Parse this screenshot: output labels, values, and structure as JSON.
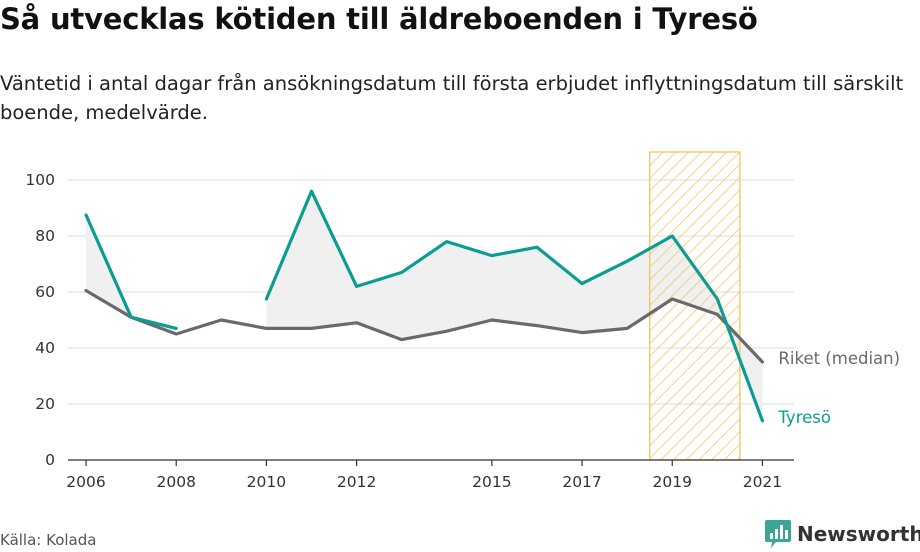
{
  "title": "Så utvecklas kötiden till äldreboenden i Tyresö",
  "subtitle": "Väntetid i antal dagar från ansökningsdatum till första erbjudet inflyttningsdatum till särskilt boende, medelvärde.",
  "source": "Källa: Kolada",
  "brand": "Newsworthy",
  "colors": {
    "tyreso": "#0a9e92",
    "riket": "#6b696e",
    "highlight_stroke": "#f2c04e",
    "area_fill": "#f0f0f0",
    "grid": "#dddddd"
  },
  "chart_data": {
    "type": "line",
    "title": "Så utvecklas kötiden till äldreboenden i Tyresö",
    "xlabel": "",
    "ylabel": "",
    "xlim": [
      2005.6,
      2021.7
    ],
    "ylim": [
      0,
      110
    ],
    "grid": true,
    "x_ticks": [
      2006,
      2008,
      2010,
      2012,
      2015,
      2017,
      2019,
      2021
    ],
    "y_ticks": [
      0,
      20,
      40,
      60,
      80,
      100
    ],
    "highlight_range": [
      2018.5,
      2020.5
    ],
    "series": [
      {
        "name": "Riket (median)",
        "color": "#6b696e",
        "x": [
          2006,
          2007,
          2008,
          2009,
          2010,
          2011,
          2012,
          2013,
          2014,
          2015,
          2016,
          2017,
          2018,
          2019,
          2020,
          2021
        ],
        "y": [
          60.5,
          51,
          45,
          50,
          47,
          47,
          49,
          43,
          46,
          50,
          48,
          45.5,
          47,
          57.5,
          52,
          35
        ]
      },
      {
        "name": "Tyresö",
        "color": "#0a9e92",
        "x": [
          2006,
          2007,
          2008,
          2009,
          2010,
          2011,
          2012,
          2013,
          2014,
          2015,
          2016,
          2017,
          2018,
          2019,
          2020,
          2021
        ],
        "y": [
          87.5,
          51,
          47,
          null,
          57.5,
          96,
          62,
          67,
          78,
          73,
          76,
          63,
          71,
          80,
          57.5,
          14
        ]
      }
    ]
  }
}
